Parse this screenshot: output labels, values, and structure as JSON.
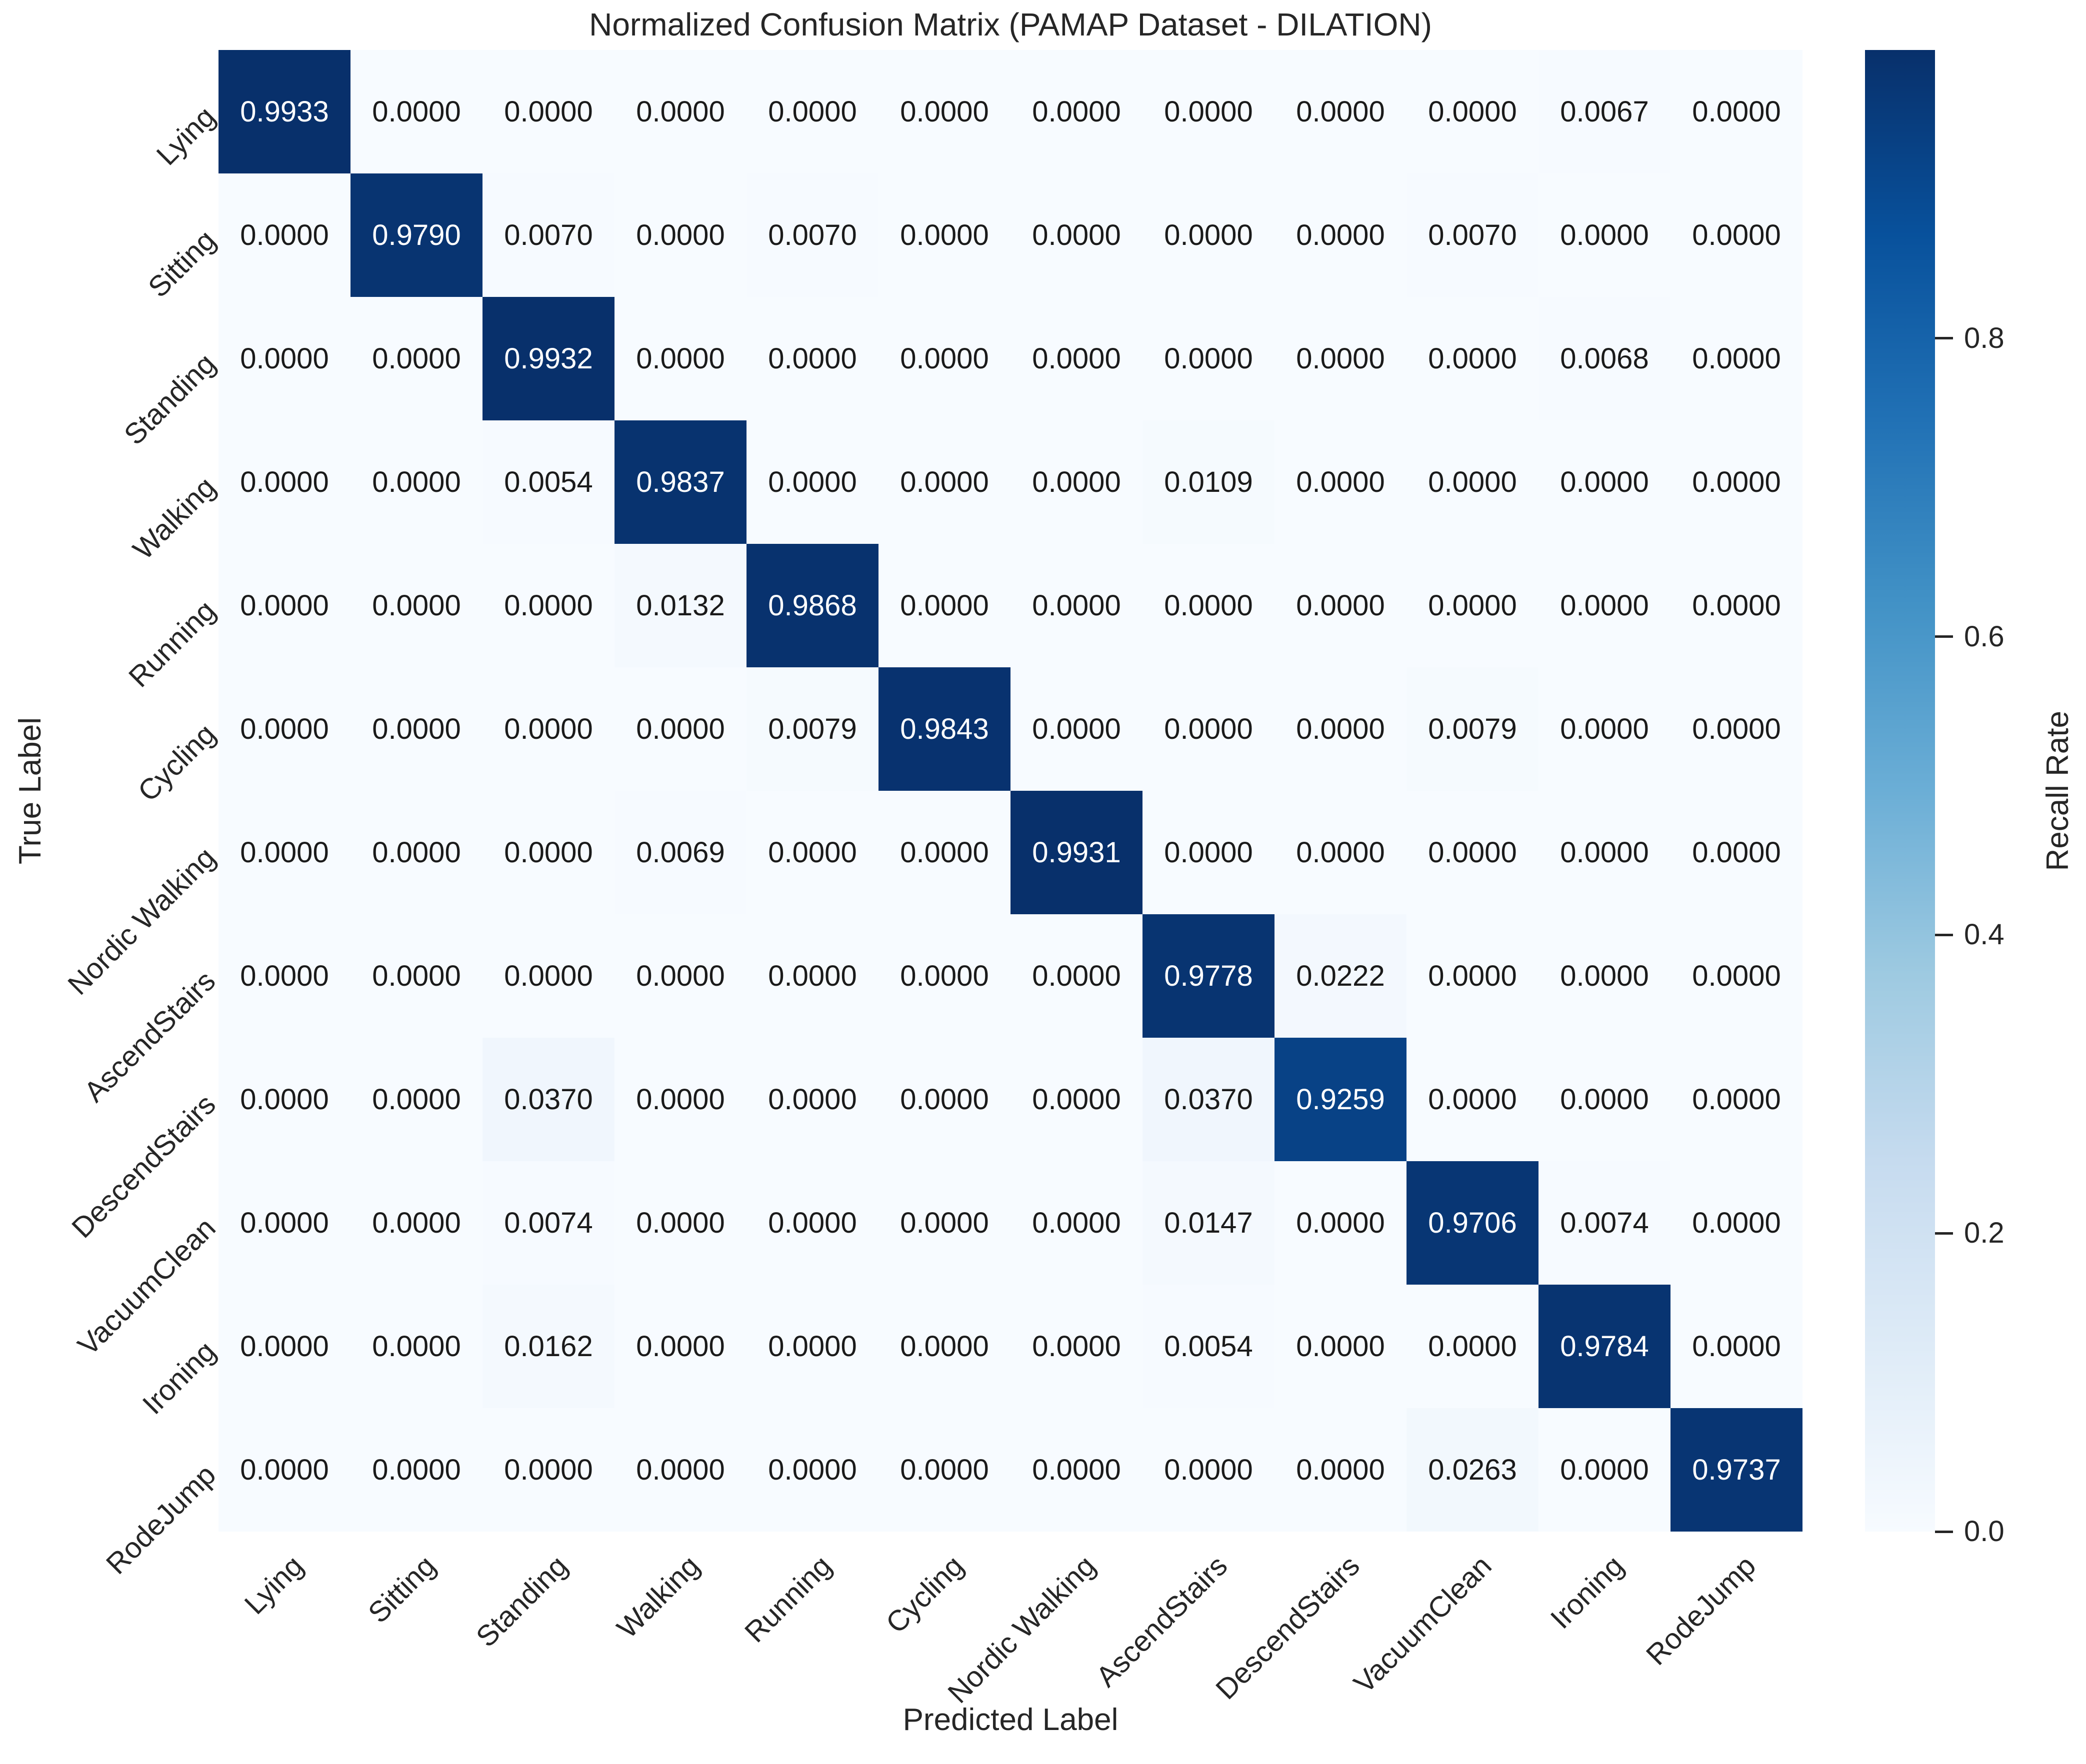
{
  "chart_data": {
    "type": "heatmap",
    "title": "Normalized Confusion Matrix (PAMAP Dataset - DILATION)",
    "xlabel": "Predicted Label",
    "ylabel": "True Label",
    "categories": [
      "Lying",
      "Sitting",
      "Standing",
      "Walking",
      "Running",
      "Cycling",
      "Nordic Walking",
      "AscendStairs",
      "DescendStairs",
      "VacuumClean",
      "Ironing",
      "RodeJump"
    ],
    "matrix": [
      [
        0.9933,
        0.0,
        0.0,
        0.0,
        0.0,
        0.0,
        0.0,
        0.0,
        0.0,
        0.0,
        0.0067,
        0.0
      ],
      [
        0.0,
        0.979,
        0.007,
        0.0,
        0.007,
        0.0,
        0.0,
        0.0,
        0.0,
        0.007,
        0.0,
        0.0
      ],
      [
        0.0,
        0.0,
        0.9932,
        0.0,
        0.0,
        0.0,
        0.0,
        0.0,
        0.0,
        0.0,
        0.0068,
        0.0
      ],
      [
        0.0,
        0.0,
        0.0054,
        0.9837,
        0.0,
        0.0,
        0.0,
        0.0109,
        0.0,
        0.0,
        0.0,
        0.0
      ],
      [
        0.0,
        0.0,
        0.0,
        0.0132,
        0.9868,
        0.0,
        0.0,
        0.0,
        0.0,
        0.0,
        0.0,
        0.0
      ],
      [
        0.0,
        0.0,
        0.0,
        0.0,
        0.0079,
        0.9843,
        0.0,
        0.0,
        0.0,
        0.0079,
        0.0,
        0.0
      ],
      [
        0.0,
        0.0,
        0.0,
        0.0069,
        0.0,
        0.0,
        0.9931,
        0.0,
        0.0,
        0.0,
        0.0,
        0.0
      ],
      [
        0.0,
        0.0,
        0.0,
        0.0,
        0.0,
        0.0,
        0.0,
        0.9778,
        0.0222,
        0.0,
        0.0,
        0.0
      ],
      [
        0.0,
        0.0,
        0.037,
        0.0,
        0.0,
        0.0,
        0.0,
        0.037,
        0.9259,
        0.0,
        0.0,
        0.0
      ],
      [
        0.0,
        0.0,
        0.0074,
        0.0,
        0.0,
        0.0,
        0.0,
        0.0147,
        0.0,
        0.9706,
        0.0074,
        0.0
      ],
      [
        0.0,
        0.0,
        0.0162,
        0.0,
        0.0,
        0.0,
        0.0,
        0.0054,
        0.0,
        0.0,
        0.9784,
        0.0
      ],
      [
        0.0,
        0.0,
        0.0,
        0.0,
        0.0,
        0.0,
        0.0,
        0.0,
        0.0,
        0.0263,
        0.0,
        0.9737
      ]
    ],
    "annot_decimals": 4,
    "colormap": "Blues",
    "vmin": 0.0,
    "vmax": 0.9933,
    "grid": false,
    "colorbar": {
      "label": "Recall Rate",
      "ticks": [
        0.0,
        0.2,
        0.4,
        0.6,
        0.8
      ],
      "tick_labels": [
        "0.0",
        "0.2",
        "0.4",
        "0.6",
        "0.8"
      ],
      "position": "right"
    },
    "colors": {
      "max_cell": "#08306b",
      "min_cell": "#f7fbff",
      "annot_dark": "#1a1a1a",
      "annot_light": "#ffffff",
      "text": "#262626"
    }
  }
}
